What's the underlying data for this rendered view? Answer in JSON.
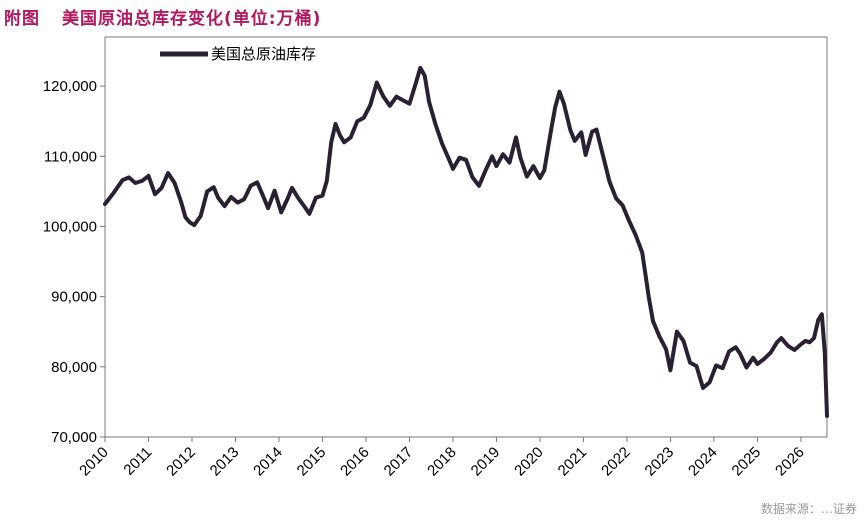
{
  "figure": {
    "label": "附图",
    "title": "美国原油总库存变化(单位:万桶)"
  },
  "watermark": "数据来源：…证券",
  "colors": {
    "title": "#b0185f",
    "line": "#2b1f33"
  },
  "chart_data": {
    "type": "line",
    "title": "美国原油总库存变化(单位:万桶)",
    "xlabel": "",
    "ylabel": "",
    "ylim": [
      70000,
      127000
    ],
    "xlim": [
      2010.0,
      2026.6
    ],
    "yticks": [
      70000,
      80000,
      90000,
      100000,
      110000,
      120000
    ],
    "ytick_labels": [
      "70,000",
      "80,000",
      "90,000",
      "100,000",
      "110,000",
      "120,000"
    ],
    "xticks": [
      "2010",
      "2011",
      "2012",
      "2013",
      "2014",
      "2015",
      "2016",
      "2017",
      "2018",
      "2019",
      "2020",
      "2021",
      "2022",
      "2023",
      "2024",
      "2025",
      "2026"
    ],
    "grid": false,
    "legend_position": "top-left",
    "series": [
      {
        "name": "美国总原油库存",
        "x": [
          2010.0,
          2010.2,
          2010.4,
          2010.55,
          2010.7,
          2010.85,
          2011.0,
          2011.15,
          2011.3,
          2011.45,
          2011.6,
          2011.75,
          2011.85,
          2011.95,
          2012.05,
          2012.2,
          2012.35,
          2012.5,
          2012.6,
          2012.75,
          2012.9,
          2013.05,
          2013.2,
          2013.35,
          2013.5,
          2013.65,
          2013.75,
          2013.9,
          2014.05,
          2014.2,
          2014.3,
          2014.45,
          2014.6,
          2014.7,
          2014.85,
          2015.0,
          2015.1,
          2015.2,
          2015.3,
          2015.4,
          2015.5,
          2015.65,
          2015.8,
          2015.95,
          2016.1,
          2016.25,
          2016.4,
          2016.55,
          2016.7,
          2016.85,
          2017.0,
          2017.15,
          2017.25,
          2017.35,
          2017.45,
          2017.6,
          2017.75,
          2017.9,
          2018.0,
          2018.15,
          2018.3,
          2018.45,
          2018.6,
          2018.75,
          2018.9,
          2019.0,
          2019.15,
          2019.3,
          2019.45,
          2019.55,
          2019.7,
          2019.85,
          2020.0,
          2020.1,
          2020.25,
          2020.35,
          2020.45,
          2020.55,
          2020.7,
          2020.8,
          2020.95,
          2021.05,
          2021.2,
          2021.3,
          2021.45,
          2021.6,
          2021.75,
          2021.9,
          2022.05,
          2022.2,
          2022.35,
          2022.5,
          2022.6,
          2022.75,
          2022.9,
          2023.0,
          2023.15,
          2023.3,
          2023.45,
          2023.6,
          2023.75,
          2023.9,
          2024.05,
          2024.2,
          2024.35,
          2024.5,
          2024.6,
          2024.75,
          2024.9,
          2025.0,
          2025.15,
          2025.3,
          2025.45,
          2025.55,
          2025.7,
          2025.85,
          2026.0,
          2026.1,
          2026.2,
          2026.3,
          2026.4,
          2026.48,
          2026.55,
          2026.6
        ],
        "values": [
          103200,
          104800,
          106600,
          107000,
          106200,
          106500,
          107200,
          104600,
          105500,
          107600,
          106200,
          103500,
          101300,
          100600,
          100200,
          101500,
          105000,
          105600,
          104100,
          102900,
          104200,
          103400,
          103900,
          105800,
          106300,
          104100,
          102600,
          105100,
          102000,
          104000,
          105500,
          104000,
          102700,
          101800,
          104100,
          104400,
          106500,
          112000,
          114600,
          113000,
          112000,
          112700,
          115000,
          115500,
          117300,
          120500,
          118500,
          117200,
          118500,
          118000,
          117500,
          120500,
          122600,
          121500,
          117800,
          114500,
          111800,
          109700,
          108200,
          109800,
          109500,
          107000,
          105800,
          108000,
          110000,
          108600,
          110300,
          109100,
          112700,
          109800,
          107100,
          108600,
          106900,
          108000,
          113500,
          117000,
          119200,
          117500,
          113700,
          112200,
          113400,
          110200,
          113500,
          113800,
          110100,
          106400,
          104000,
          103000,
          100800,
          98800,
          96300,
          90000,
          86500,
          84300,
          82500,
          79500,
          85000,
          83700,
          80600,
          80100,
          77000,
          77800,
          80200,
          79800,
          82200,
          82800,
          81900,
          79900,
          81300,
          80400,
          81100,
          82000,
          83500,
          84100,
          83000,
          82400,
          83200,
          83700,
          83500,
          84100,
          86700,
          87500,
          82000,
          73000
        ]
      }
    ]
  }
}
